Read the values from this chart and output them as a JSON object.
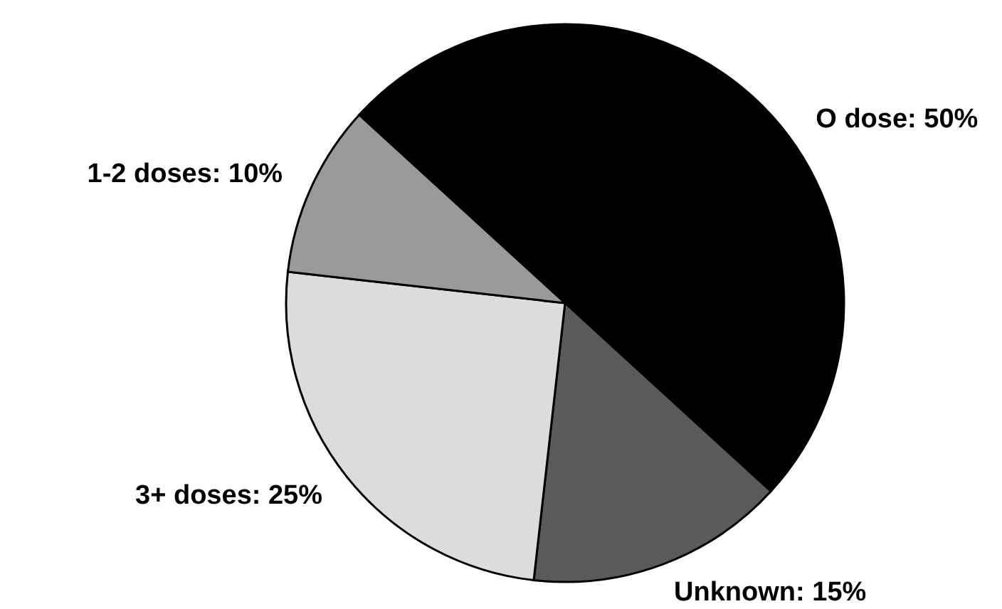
{
  "chart_data": {
    "type": "pie",
    "categories": [
      "O dose",
      "Unknown",
      "3+ doses",
      "1-2 doses"
    ],
    "values": [
      50,
      15,
      25,
      10
    ],
    "colors": [
      "#000000",
      "#5a5a5a",
      "#dcdcdc",
      "#9a9a9a"
    ],
    "value_labels": [
      "50%",
      "15%",
      "25%",
      "10%"
    ]
  }
}
